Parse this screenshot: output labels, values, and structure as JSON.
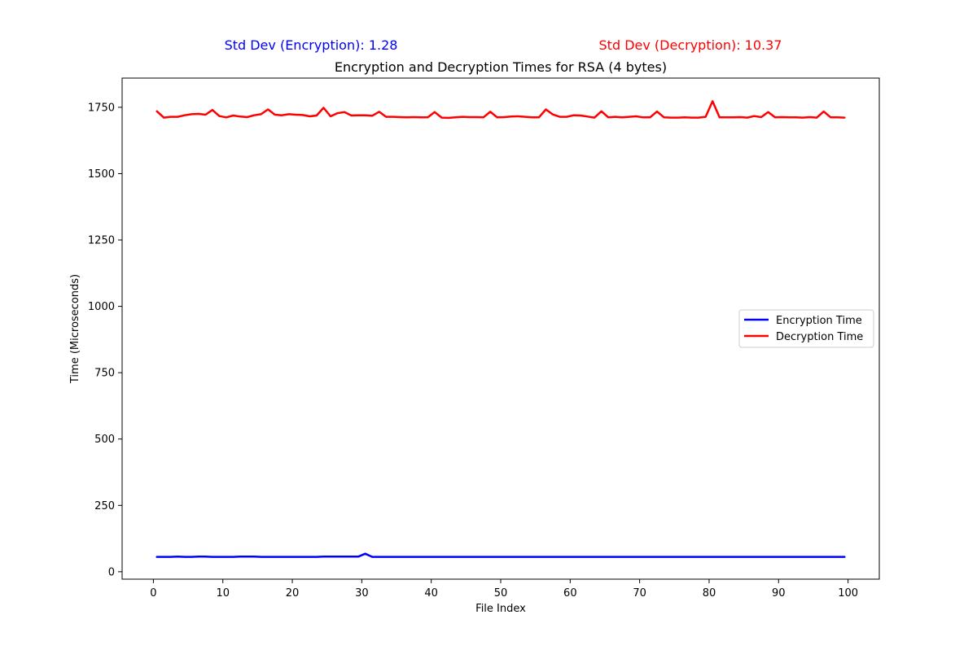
{
  "chart_data": {
    "type": "line",
    "title": "Encryption and Decryption Times for RSA (4 bytes)",
    "xlabel": "File Index",
    "ylabel": "Time (Microseconds)",
    "xlim": [
      -4.5,
      104.5
    ],
    "ylim": [
      -28,
      1860
    ],
    "x_ticks": [
      0,
      10,
      20,
      30,
      40,
      50,
      60,
      70,
      80,
      90,
      100
    ],
    "y_ticks": [
      0,
      250,
      500,
      750,
      1000,
      1250,
      1500,
      1750
    ],
    "annotations": [
      {
        "text": "Std Dev (Encryption): 1.28",
        "color": "#0000ff"
      },
      {
        "text": "Std Dev (Decryption): 10.37",
        "color": "#ff0000"
      }
    ],
    "legend": {
      "placement": "center-right"
    },
    "x": [
      0.5,
      1.5,
      2.5,
      3.5,
      4.5,
      5.5,
      6.5,
      7.5,
      8.5,
      9.5,
      10.5,
      11.5,
      12.5,
      13.5,
      14.5,
      15.5,
      16.5,
      17.5,
      18.5,
      19.5,
      20.5,
      21.5,
      22.5,
      23.5,
      24.5,
      25.5,
      26.5,
      27.5,
      28.5,
      29.5,
      30.5,
      31.5,
      32.5,
      33.5,
      34.5,
      35.5,
      36.5,
      37.5,
      38.5,
      39.5,
      40.5,
      41.5,
      42.5,
      43.5,
      44.5,
      45.5,
      46.5,
      47.5,
      48.5,
      49.5,
      50.5,
      51.5,
      52.5,
      53.5,
      54.5,
      55.5,
      56.5,
      57.5,
      58.5,
      59.5,
      60.5,
      61.5,
      62.5,
      63.5,
      64.5,
      65.5,
      66.5,
      67.5,
      68.5,
      69.5,
      70.5,
      71.5,
      72.5,
      73.5,
      74.5,
      75.5,
      76.5,
      77.5,
      78.5,
      79.5,
      80.5,
      81.5,
      82.5,
      83.5,
      84.5,
      85.5,
      86.5,
      87.5,
      88.5,
      89.5,
      90.5,
      91.5,
      92.5,
      93.5,
      94.5,
      95.5,
      96.5,
      97.5,
      98.5,
      99.5
    ],
    "series": [
      {
        "name": "Encryption Time",
        "color": "#0000ff",
        "values": [
          56,
          56,
          56,
          57,
          56,
          56,
          57,
          57,
          56,
          56,
          56,
          56,
          57,
          57,
          57,
          56,
          56,
          56,
          56,
          56,
          56,
          56,
          56,
          56,
          57,
          57,
          57,
          57,
          57,
          57,
          68,
          56,
          56,
          56,
          56,
          56,
          56,
          56,
          56,
          56,
          56,
          56,
          56,
          56,
          56,
          56,
          56,
          56,
          56,
          56,
          56,
          56,
          56,
          56,
          56,
          56,
          56,
          56,
          56,
          56,
          56,
          56,
          56,
          56,
          56,
          56,
          56,
          56,
          56,
          56,
          56,
          56,
          56,
          56,
          56,
          56,
          56,
          56,
          56,
          56,
          56,
          56,
          56,
          56,
          56,
          56,
          56,
          56,
          56,
          56,
          56,
          56,
          56,
          56,
          56,
          56,
          56,
          56,
          56,
          56
        ]
      },
      {
        "name": "Decryption Time",
        "color": "#ff0000",
        "values": [
          1735,
          1711,
          1714,
          1714,
          1720,
          1724,
          1725,
          1722,
          1740,
          1717,
          1712,
          1719,
          1715,
          1713,
          1720,
          1724,
          1742,
          1722,
          1720,
          1724,
          1722,
          1721,
          1716,
          1719,
          1748,
          1716,
          1728,
          1732,
          1719,
          1720,
          1720,
          1718,
          1733,
          1714,
          1714,
          1713,
          1712,
          1713,
          1712,
          1712,
          1732,
          1711,
          1710,
          1712,
          1714,
          1713,
          1713,
          1712,
          1733,
          1712,
          1713,
          1715,
          1716,
          1714,
          1712,
          1712,
          1742,
          1723,
          1714,
          1714,
          1720,
          1719,
          1715,
          1711,
          1735,
          1712,
          1714,
          1712,
          1714,
          1716,
          1712,
          1712,
          1734,
          1712,
          1711,
          1711,
          1712,
          1711,
          1711,
          1714,
          1773,
          1712,
          1712,
          1712,
          1713,
          1711,
          1717,
          1713,
          1732,
          1712,
          1713,
          1712,
          1712,
          1711,
          1713,
          1711,
          1734,
          1712,
          1712,
          1711
        ]
      }
    ]
  }
}
